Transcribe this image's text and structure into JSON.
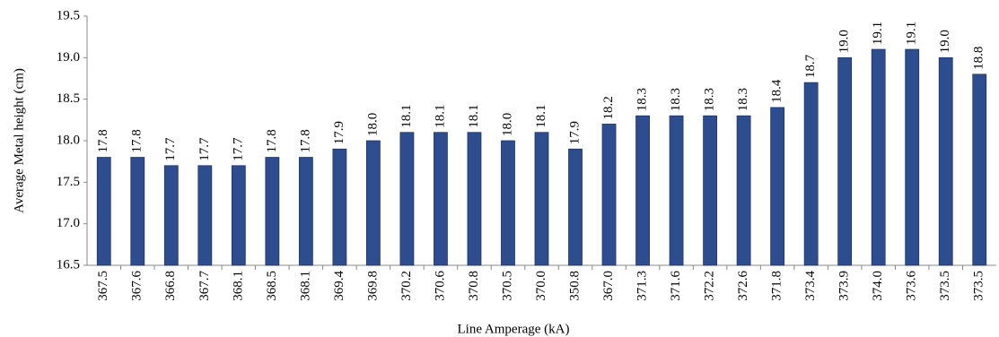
{
  "chart_data": {
    "type": "bar",
    "x_label": "Line Amperage (kA)",
    "y_label": "Average Metal height (cm)",
    "categories": [
      "367.5",
      "367.6",
      "366.8",
      "367.7",
      "368.1",
      "368.5",
      "368.1",
      "369.4",
      "369.8",
      "370.2",
      "370.6",
      "370.8",
      "370.5",
      "370.0",
      "350.8",
      "367.0",
      "371.3",
      "371.6",
      "372.2",
      "372.6",
      "371.8",
      "373.4",
      "373.9",
      "374.0",
      "373.6",
      "373.5",
      "373.5"
    ],
    "values": [
      17.8,
      17.8,
      17.7,
      17.7,
      17.7,
      17.8,
      17.8,
      17.9,
      18.0,
      18.1,
      18.1,
      18.1,
      18.0,
      18.1,
      17.9,
      18.2,
      18.3,
      18.3,
      18.3,
      18.3,
      18.4,
      18.7,
      19.0,
      19.1,
      19.1,
      19.0,
      18.8
    ],
    "value_labels": [
      "17.8",
      "17.8",
      "17.7",
      "17.7",
      "17.7",
      "17.8",
      "17.8",
      "17.9",
      "18.0",
      "18.1",
      "18.1",
      "18.1",
      "18.0",
      "18.1",
      "17.9",
      "18.2",
      "18.3",
      "18.3",
      "18.3",
      "18.3",
      "18.4",
      "18.7",
      "19.0",
      "19.1",
      "19.1",
      "19.0",
      "18.8"
    ],
    "color": "#2e4d8e",
    "ylim": [
      16.5,
      19.5
    ],
    "yticks": [
      16.5,
      {
        "value": 17,
        "label": "17.0"
      },
      17.5,
      {
        "value": 18,
        "label": "18.0"
      },
      18.5,
      {
        "value": 19,
        "label": "19.0"
      },
      19.5
    ],
    "grid": false
  }
}
